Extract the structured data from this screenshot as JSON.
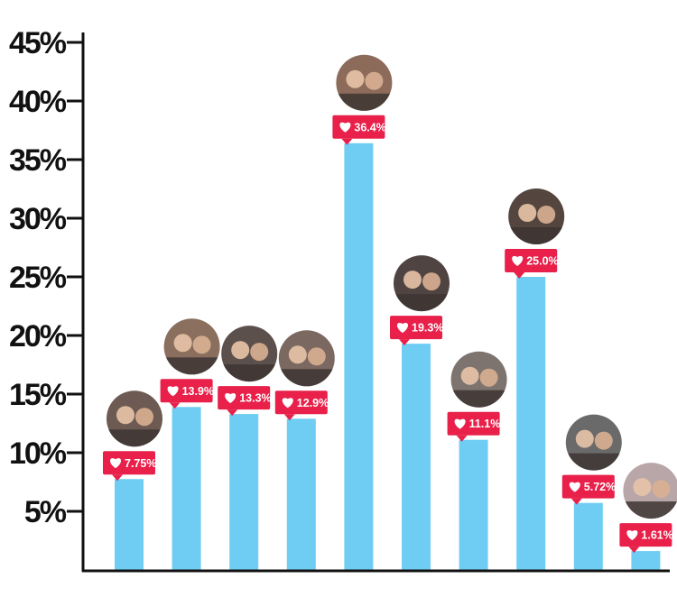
{
  "chart_data": {
    "type": "bar",
    "ylim": [
      0,
      45
    ],
    "yticks": [
      5,
      10,
      15,
      20,
      25,
      30,
      35,
      40,
      45
    ],
    "ytick_labels": [
      "5%",
      "10%",
      "15%",
      "20%",
      "25%",
      "30%",
      "35%",
      "40%",
      "45%"
    ],
    "values": [
      7.75,
      13.9,
      13.3,
      12.9,
      36.4,
      19.3,
      11.1,
      25.0,
      5.72,
      1.61
    ],
    "data_labels": [
      "7.75%",
      "13.9%",
      "13.3%",
      "12.9%",
      "36.4%",
      "19.3%",
      "11.1%",
      "25.0%",
      "5.72%",
      "1.61%"
    ],
    "grid": false,
    "legend": "none"
  },
  "colors": {
    "bar": "#6fcdf4",
    "badge": "#e8204a",
    "axis": "#111111",
    "avatar_bg": "#7a6a64"
  },
  "icons": {
    "badge_icon": "heart-icon",
    "avatar_icon": "couple-photo-avatar"
  }
}
